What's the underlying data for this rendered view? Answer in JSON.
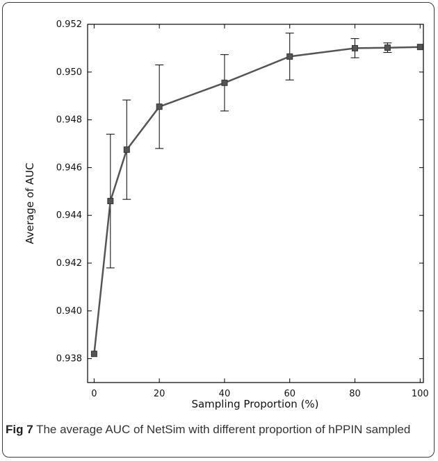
{
  "chart_data": {
    "type": "line",
    "title": "",
    "xlabel": "Sampling Proportion (%)",
    "ylabel": "Average of AUC",
    "xlim": [
      -2,
      101
    ],
    "ylim": [
      0.937,
      0.952
    ],
    "xticks": [
      "0",
      "20",
      "40",
      "60",
      "80",
      "100"
    ],
    "yticks": [
      "0.938",
      "0.940",
      "0.942",
      "0.944",
      "0.946",
      "0.948",
      "0.950",
      "0.952"
    ],
    "grid": false,
    "series": [
      {
        "x": [
          0,
          5,
          10,
          20,
          40,
          60,
          80,
          90,
          100
        ],
        "y": [
          0.9382,
          0.9446,
          0.94675,
          0.94855,
          0.94955,
          0.95065,
          0.951,
          0.95102,
          0.95105
        ],
        "error": [
          0.0,
          0.0028,
          0.00208,
          0.00175,
          0.00118,
          0.00098,
          0.0004,
          0.0002,
          0.0
        ],
        "color": "#555555",
        "marker": "square"
      }
    ]
  },
  "caption": {
    "label": "Fig 7",
    "text": " The average AUC of NetSim with different proportion of hPPIN sampled"
  }
}
